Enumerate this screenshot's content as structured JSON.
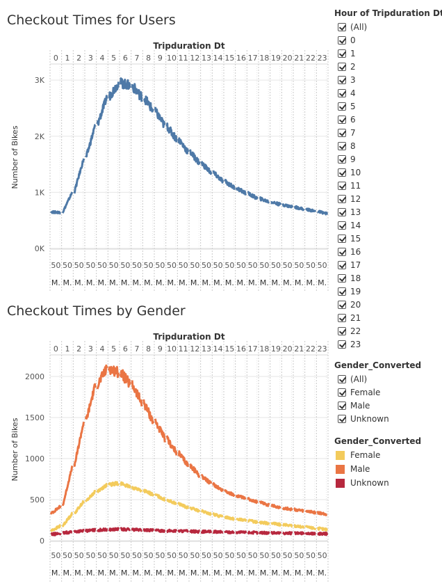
{
  "chart1_title": "Checkout Times for Users",
  "chart2_title": "Checkout Times by Gender",
  "legend_hours": {
    "title": "Hour of Tripduration Dt",
    "items": [
      "(All)",
      "0",
      "1",
      "2",
      "3",
      "4",
      "5",
      "6",
      "7",
      "8",
      "9",
      "10",
      "11",
      "12",
      "13",
      "14",
      "15",
      "16",
      "17",
      "18",
      "19",
      "20",
      "21",
      "22",
      "23"
    ]
  },
  "legend_gender_filter": {
    "title": "Gender_Converted",
    "items": [
      "(All)",
      "Female",
      "Male",
      "Unknown"
    ]
  },
  "legend_gender_color": {
    "title": "Gender_Converted",
    "items": [
      {
        "label": "Female",
        "color": "#f3cb5c"
      },
      {
        "label": "Male",
        "color": "#ea7544"
      },
      {
        "label": "Unknown",
        "color": "#b7283e"
      }
    ]
  },
  "chart_data": [
    {
      "type": "line",
      "title": "Checkout Times for Users",
      "xlabel": "Tripduration Dt",
      "ylabel": "Number of Bikes",
      "panels": [
        "0",
        "1",
        "2",
        "3",
        "4",
        "5",
        "6",
        "7",
        "8",
        "9",
        "10",
        "11",
        "12",
        "13",
        "14",
        "15",
        "16",
        "17",
        "18",
        "19",
        "20",
        "21",
        "22",
        "23"
      ],
      "bottom_labels": [
        "50",
        "M."
      ],
      "yticks": [
        "0K",
        "1K",
        "2K",
        "3K"
      ],
      "ytick_values": [
        0,
        1000,
        2000,
        3000
      ],
      "ylim": [
        0,
        3250
      ],
      "grid": true,
      "series": [
        {
          "color": "#4e79a7",
          "values": [
            650,
            640,
            1000,
            1600,
            2200,
            2700,
            2950,
            2900,
            2700,
            2450,
            2180,
            1950,
            1720,
            1520,
            1350,
            1200,
            1080,
            980,
            890,
            830,
            780,
            740,
            700,
            660
          ]
        }
      ]
    },
    {
      "type": "line",
      "title": "Checkout Times by Gender",
      "xlabel": "Tripduration Dt",
      "ylabel": "Number of Bikes",
      "panels": [
        "0",
        "1",
        "2",
        "3",
        "4",
        "5",
        "6",
        "7",
        "8",
        "9",
        "10",
        "11",
        "12",
        "13",
        "14",
        "15",
        "16",
        "17",
        "18",
        "19",
        "20",
        "21",
        "22",
        "23"
      ],
      "bottom_labels": [
        "50",
        "M."
      ],
      "yticks": [
        "0",
        "500",
        "1000",
        "1500",
        "2000"
      ],
      "ytick_values": [
        0,
        500,
        1000,
        1500,
        2000
      ],
      "ylim": [
        0,
        2220
      ],
      "grid": true,
      "series": [
        {
          "name": "Male",
          "color": "#ea7544",
          "values": [
            330,
            420,
            900,
            1450,
            1900,
            2100,
            2050,
            1900,
            1680,
            1450,
            1240,
            1070,
            920,
            790,
            690,
            610,
            550,
            510,
            470,
            430,
            400,
            380,
            360,
            340
          ]
        },
        {
          "name": "Female",
          "color": "#f3cb5c",
          "values": [
            120,
            180,
            330,
            480,
            600,
            680,
            700,
            650,
            610,
            560,
            500,
            450,
            400,
            360,
            320,
            290,
            265,
            245,
            225,
            210,
            195,
            180,
            165,
            150
          ]
        },
        {
          "name": "Unknown",
          "color": "#b7283e",
          "values": [
            75,
            90,
            110,
            120,
            130,
            135,
            140,
            135,
            130,
            125,
            120,
            118,
            115,
            110,
            108,
            105,
            103,
            100,
            98,
            95,
            93,
            90,
            88,
            85
          ]
        }
      ]
    }
  ]
}
